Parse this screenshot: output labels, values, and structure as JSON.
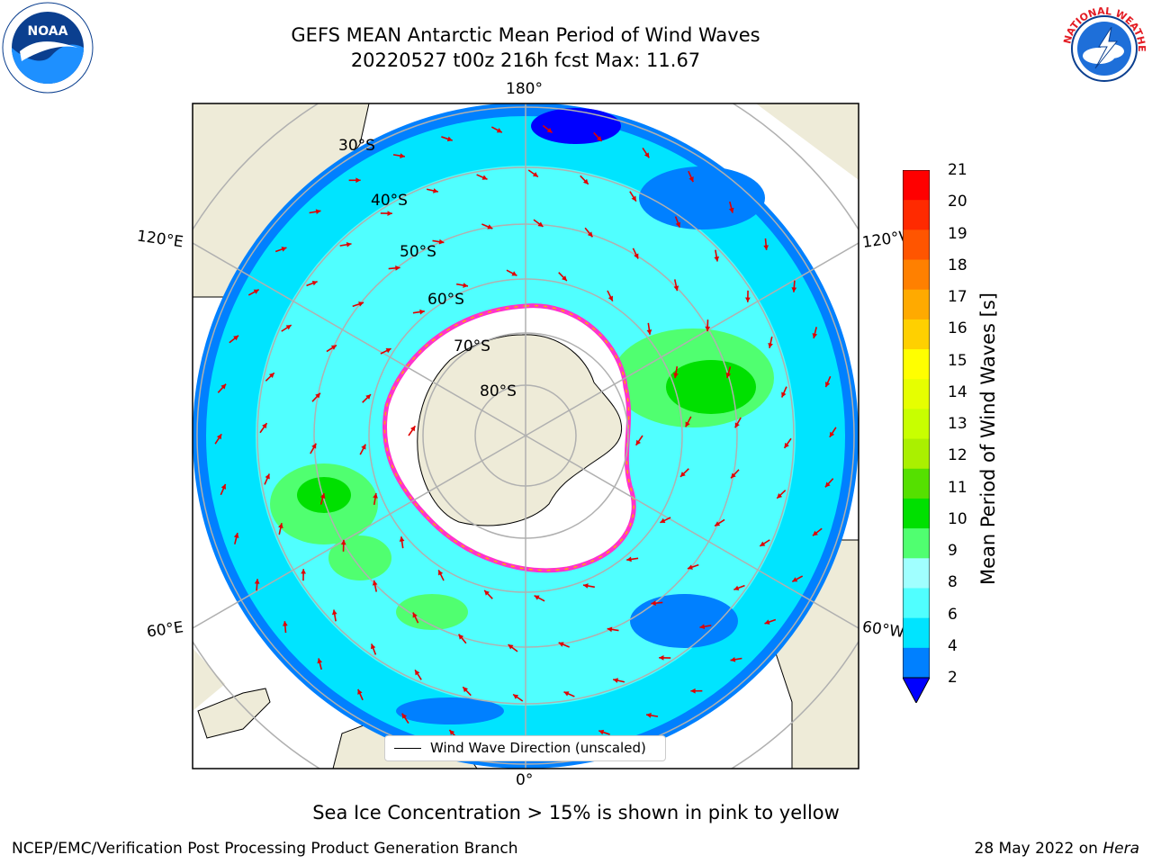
{
  "title": {
    "line1": "GEFS MEAN Antarctic Mean Period of Wind Waves",
    "line2": "20220527 t00z 216h fcst   Max: 11.67"
  },
  "longitude_labels": {
    "top": "180°",
    "bottom": "0°",
    "left_upper": "120°E",
    "right_upper": "120°W",
    "left_lower": "60°E",
    "right_lower": "60°W"
  },
  "latitude_labels": [
    "30°S",
    "40°S",
    "50°S",
    "60°S",
    "70°S",
    "80°S"
  ],
  "colorbar": {
    "label": "Mean Period of Wind Waves [s]",
    "ticks": [
      "21",
      "20",
      "19",
      "18",
      "17",
      "16",
      "15",
      "14",
      "13",
      "12",
      "11",
      "10",
      "9",
      "8",
      "6",
      "4",
      "2"
    ],
    "colors": [
      "#ff0000",
      "#ff2a00",
      "#ff5500",
      "#ff8000",
      "#ffaa00",
      "#ffd000",
      "#ffff00",
      "#e6ff00",
      "#c8ff00",
      "#aaf000",
      "#55e000",
      "#00e000",
      "#50ff70",
      "#a0ffff",
      "#50ffff",
      "#00e4ff",
      "#0080ff",
      "#0000ff"
    ]
  },
  "legend": {
    "label": "Wind Wave Direction (unscaled)"
  },
  "footer": {
    "subtitle": "Sea Ice Concentration > 15% is shown in pink to yellow",
    "credit": "NCEP/EMC/Verification Post Processing Product Generation Branch",
    "date_prefix": "28 May 2022 on ",
    "date_italic": "Hera"
  },
  "logos": {
    "noaa": "NOAA",
    "nws": "NATIONAL WEATHER SERVICE"
  }
}
